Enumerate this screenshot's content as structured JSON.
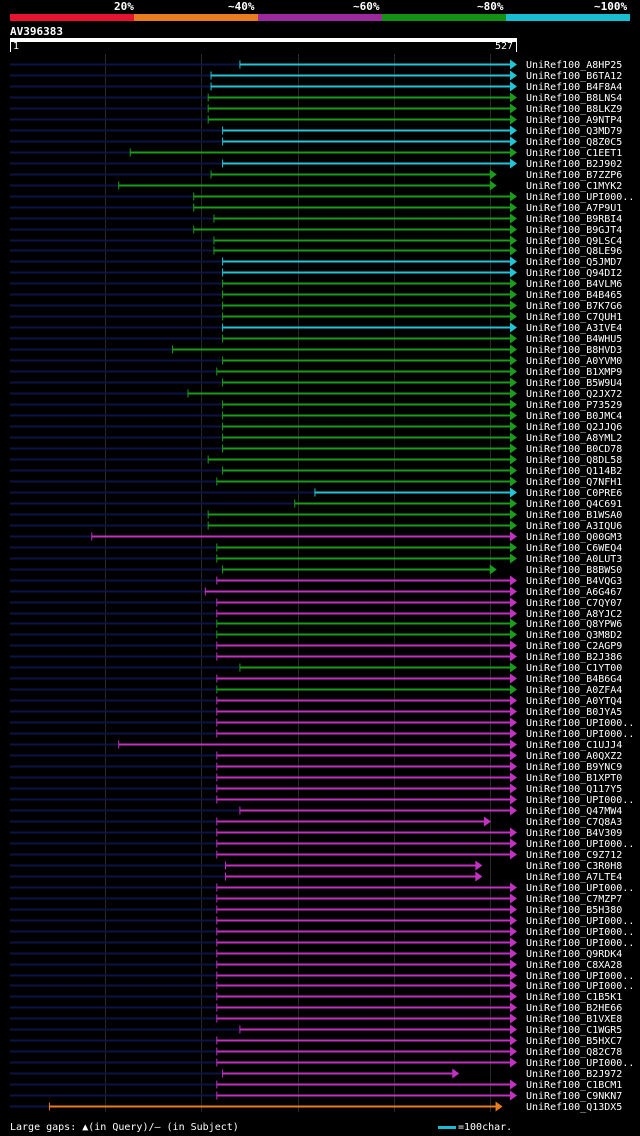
{
  "legend": {
    "labels": [
      "20%",
      "~40%",
      "~60%",
      "~80%",
      "~100%"
    ],
    "colors": [
      "#e8132e",
      "#e87c1e",
      "#9d2a9d",
      "#139113",
      "#17becf"
    ]
  },
  "query": {
    "id": "AV396383",
    "start_label": "1",
    "end_label": "527",
    "length": 527
  },
  "colors": {
    "20": "#e8132e",
    "40": "#e87c1e",
    "60": "#c231c2",
    "80": "#1a9d1a",
    "100": "#22c5d5",
    "background": "#000000",
    "query_track": "#0b1445"
  },
  "footer": {
    "gaps_text": "Large gaps: ▲(in Query)/– (in Subject)",
    "scale_text": "=100char."
  },
  "chart_data": {
    "type": "alignment-overview",
    "x_axis": {
      "min": 1,
      "max": 527,
      "grid": [
        100,
        200,
        300,
        400,
        500
      ]
    },
    "hits": [
      {
        "name": "UniRef100_A8HP25",
        "start": 240,
        "end": 527,
        "color": "100"
      },
      {
        "name": "UniRef100_B6TA12",
        "start": 210,
        "end": 527,
        "color": "100"
      },
      {
        "name": "UniRef100_B4F8A4",
        "start": 210,
        "end": 527,
        "color": "100"
      },
      {
        "name": "UniRef100_B8LNS4",
        "start": 207,
        "end": 527,
        "color": "80"
      },
      {
        "name": "UniRef100_B8LKZ9",
        "start": 207,
        "end": 527,
        "color": "80"
      },
      {
        "name": "UniRef100_A9NTP4",
        "start": 207,
        "end": 527,
        "color": "80"
      },
      {
        "name": "UniRef100_Q3MD79",
        "start": 222,
        "end": 527,
        "color": "100"
      },
      {
        "name": "UniRef100_Q8Z0C5",
        "start": 222,
        "end": 527,
        "color": "100"
      },
      {
        "name": "UniRef100_C1EET1",
        "start": 126,
        "end": 527,
        "color": "80"
      },
      {
        "name": "UniRef100_B2J902",
        "start": 222,
        "end": 527,
        "color": "100"
      },
      {
        "name": "UniRef100_B7ZZP6",
        "start": 210,
        "end": 506,
        "color": "80"
      },
      {
        "name": "UniRef100_C1MYK2",
        "start": 114,
        "end": 506,
        "color": "80"
      },
      {
        "name": "UniRef100_UPI000..",
        "start": 192,
        "end": 527,
        "color": "80"
      },
      {
        "name": "UniRef100_A7P9U1",
        "start": 192,
        "end": 527,
        "color": "80"
      },
      {
        "name": "UniRef100_B9RBI4",
        "start": 213,
        "end": 527,
        "color": "80"
      },
      {
        "name": "UniRef100_B9GJT4",
        "start": 192,
        "end": 527,
        "color": "80"
      },
      {
        "name": "UniRef100_Q9LSC4",
        "start": 213,
        "end": 527,
        "color": "80"
      },
      {
        "name": "UniRef100_Q8LE96",
        "start": 213,
        "end": 527,
        "color": "80"
      },
      {
        "name": "UniRef100_Q5JMD7",
        "start": 222,
        "end": 527,
        "color": "100"
      },
      {
        "name": "UniRef100_Q94DI2",
        "start": 222,
        "end": 527,
        "color": "100"
      },
      {
        "name": "UniRef100_B4VLM6",
        "start": 222,
        "end": 527,
        "color": "80"
      },
      {
        "name": "UniRef100_B4B465",
        "start": 222,
        "end": 527,
        "color": "80"
      },
      {
        "name": "UniRef100_B7K7G6",
        "start": 222,
        "end": 527,
        "color": "80"
      },
      {
        "name": "UniRef100_C7QUH1",
        "start": 222,
        "end": 527,
        "color": "80"
      },
      {
        "name": "UniRef100_A3IVE4",
        "start": 222,
        "end": 527,
        "color": "100"
      },
      {
        "name": "UniRef100_B4WHU5",
        "start": 222,
        "end": 527,
        "color": "80"
      },
      {
        "name": "UniRef100_B8HVD3",
        "start": 170,
        "end": 527,
        "color": "80"
      },
      {
        "name": "UniRef100_A0YVM0",
        "start": 222,
        "end": 527,
        "color": "80"
      },
      {
        "name": "UniRef100_B1XMP9",
        "start": 216,
        "end": 527,
        "color": "80"
      },
      {
        "name": "UniRef100_B5W9U4",
        "start": 222,
        "end": 527,
        "color": "80"
      },
      {
        "name": "UniRef100_Q2JX72",
        "start": 186,
        "end": 527,
        "color": "80"
      },
      {
        "name": "UniRef100_P73529",
        "start": 222,
        "end": 527,
        "color": "80"
      },
      {
        "name": "UniRef100_B0JMC4",
        "start": 222,
        "end": 527,
        "color": "80"
      },
      {
        "name": "UniRef100_Q2JJQ6",
        "start": 222,
        "end": 527,
        "color": "80"
      },
      {
        "name": "UniRef100_A8YML2",
        "start": 222,
        "end": 527,
        "color": "80"
      },
      {
        "name": "UniRef100_B0CD78",
        "start": 222,
        "end": 527,
        "color": "80"
      },
      {
        "name": "UniRef100_Q8DL58",
        "start": 207,
        "end": 527,
        "color": "80"
      },
      {
        "name": "UniRef100_Q114B2",
        "start": 222,
        "end": 527,
        "color": "80"
      },
      {
        "name": "UniRef100_Q7NFH1",
        "start": 216,
        "end": 527,
        "color": "80"
      },
      {
        "name": "UniRef100_C0PRE6",
        "start": 318,
        "end": 527,
        "color": "100"
      },
      {
        "name": "UniRef100_Q4C691",
        "start": 297,
        "end": 527,
        "color": "80"
      },
      {
        "name": "UniRef100_B1WSA0",
        "start": 207,
        "end": 527,
        "color": "80"
      },
      {
        "name": "UniRef100_A3IQU6",
        "start": 207,
        "end": 527,
        "color": "80"
      },
      {
        "name": "UniRef100_Q00GM3",
        "start": 86,
        "end": 527,
        "color": "60"
      },
      {
        "name": "UniRef100_C6WEQ4",
        "start": 216,
        "end": 527,
        "color": "80"
      },
      {
        "name": "UniRef100_A0LUT3",
        "start": 216,
        "end": 527,
        "color": "80"
      },
      {
        "name": "UniRef100_B8BWS0",
        "start": 222,
        "end": 506,
        "color": "80"
      },
      {
        "name": "UniRef100_B4VQG3",
        "start": 216,
        "end": 527,
        "color": "60"
      },
      {
        "name": "UniRef100_A6G467",
        "start": 204,
        "end": 527,
        "color": "60"
      },
      {
        "name": "UniRef100_C7QY07",
        "start": 216,
        "end": 527,
        "color": "60"
      },
      {
        "name": "UniRef100_A8YJC2",
        "start": 216,
        "end": 527,
        "color": "60"
      },
      {
        "name": "UniRef100_Q8YPW6",
        "start": 216,
        "end": 527,
        "color": "80"
      },
      {
        "name": "UniRef100_Q3M8D2",
        "start": 216,
        "end": 527,
        "color": "80"
      },
      {
        "name": "UniRef100_C2AGP9",
        "start": 216,
        "end": 527,
        "color": "60"
      },
      {
        "name": "UniRef100_B2J386",
        "start": 216,
        "end": 527,
        "color": "60"
      },
      {
        "name": "UniRef100_C1YT00",
        "start": 240,
        "end": 527,
        "color": "80"
      },
      {
        "name": "UniRef100_B4B6G4",
        "start": 216,
        "end": 527,
        "color": "60"
      },
      {
        "name": "UniRef100_A0ZFA4",
        "start": 216,
        "end": 527,
        "color": "80"
      },
      {
        "name": "UniRef100_A0YTQ4",
        "start": 216,
        "end": 527,
        "color": "60"
      },
      {
        "name": "UniRef100_B0JYA5",
        "start": 216,
        "end": 527,
        "color": "60"
      },
      {
        "name": "UniRef100_UPI000..",
        "start": 216,
        "end": 527,
        "color": "60"
      },
      {
        "name": "UniRef100_UPI000..",
        "start": 216,
        "end": 527,
        "color": "60"
      },
      {
        "name": "UniRef100_C1UJJ4",
        "start": 114,
        "end": 527,
        "color": "60"
      },
      {
        "name": "UniRef100_A0QXZ2",
        "start": 216,
        "end": 527,
        "color": "60"
      },
      {
        "name": "UniRef100_B9YNC9",
        "start": 216,
        "end": 527,
        "color": "60"
      },
      {
        "name": "UniRef100_B1XPT0",
        "start": 216,
        "end": 527,
        "color": "60"
      },
      {
        "name": "UniRef100_Q117Y5",
        "start": 216,
        "end": 527,
        "color": "60"
      },
      {
        "name": "UniRef100_UPI000..",
        "start": 216,
        "end": 527,
        "color": "60"
      },
      {
        "name": "UniRef100_Q47MW4",
        "start": 240,
        "end": 527,
        "color": "60"
      },
      {
        "name": "UniRef100_C7Q8A3",
        "start": 216,
        "end": 500,
        "color": "60"
      },
      {
        "name": "UniRef100_B4V309",
        "start": 216,
        "end": 527,
        "color": "60"
      },
      {
        "name": "UniRef100_UPI000..",
        "start": 216,
        "end": 527,
        "color": "60"
      },
      {
        "name": "UniRef100_C9Z712",
        "start": 216,
        "end": 527,
        "color": "60"
      },
      {
        "name": "UniRef100_C3R0H8",
        "start": 225,
        "end": 491,
        "color": "60"
      },
      {
        "name": "UniRef100_A7LTE4",
        "start": 225,
        "end": 491,
        "color": "60"
      },
      {
        "name": "UniRef100_UPI000..",
        "start": 216,
        "end": 527,
        "color": "60"
      },
      {
        "name": "UniRef100_C7MZP7",
        "start": 216,
        "end": 527,
        "color": "60"
      },
      {
        "name": "UniRef100_B5H380",
        "start": 216,
        "end": 527,
        "color": "60"
      },
      {
        "name": "UniRef100_UPI000..",
        "start": 216,
        "end": 527,
        "color": "60"
      },
      {
        "name": "UniRef100_UPI000..",
        "start": 216,
        "end": 527,
        "color": "60"
      },
      {
        "name": "UniRef100_UPI000..",
        "start": 216,
        "end": 527,
        "color": "60"
      },
      {
        "name": "UniRef100_Q9RDK4",
        "start": 216,
        "end": 527,
        "color": "60"
      },
      {
        "name": "UniRef100_C8XA28",
        "start": 216,
        "end": 527,
        "color": "60"
      },
      {
        "name": "UniRef100_UPI000..",
        "start": 216,
        "end": 527,
        "color": "60"
      },
      {
        "name": "UniRef100_UPI000..",
        "start": 216,
        "end": 527,
        "color": "60"
      },
      {
        "name": "UniRef100_C1B5K1",
        "start": 216,
        "end": 527,
        "color": "60"
      },
      {
        "name": "UniRef100_B2HE66",
        "start": 216,
        "end": 527,
        "color": "60"
      },
      {
        "name": "UniRef100_B1VXE8",
        "start": 216,
        "end": 527,
        "color": "60"
      },
      {
        "name": "UniRef100_C1WGR5",
        "start": 240,
        "end": 527,
        "color": "60"
      },
      {
        "name": "UniRef100_B5HXC7",
        "start": 216,
        "end": 527,
        "color": "60"
      },
      {
        "name": "UniRef100_Q82C78",
        "start": 216,
        "end": 527,
        "color": "60"
      },
      {
        "name": "UniRef100_UPI000..",
        "start": 216,
        "end": 527,
        "color": "60"
      },
      {
        "name": "UniRef100_B2J972",
        "start": 222,
        "end": 467,
        "color": "60"
      },
      {
        "name": "UniRef100_C1BCM1",
        "start": 216,
        "end": 527,
        "color": "60"
      },
      {
        "name": "UniRef100_C9NKN7",
        "start": 216,
        "end": 527,
        "color": "60"
      },
      {
        "name": "UniRef100_Q13DX5",
        "start": 42,
        "end": 512,
        "color": "40"
      }
    ]
  }
}
